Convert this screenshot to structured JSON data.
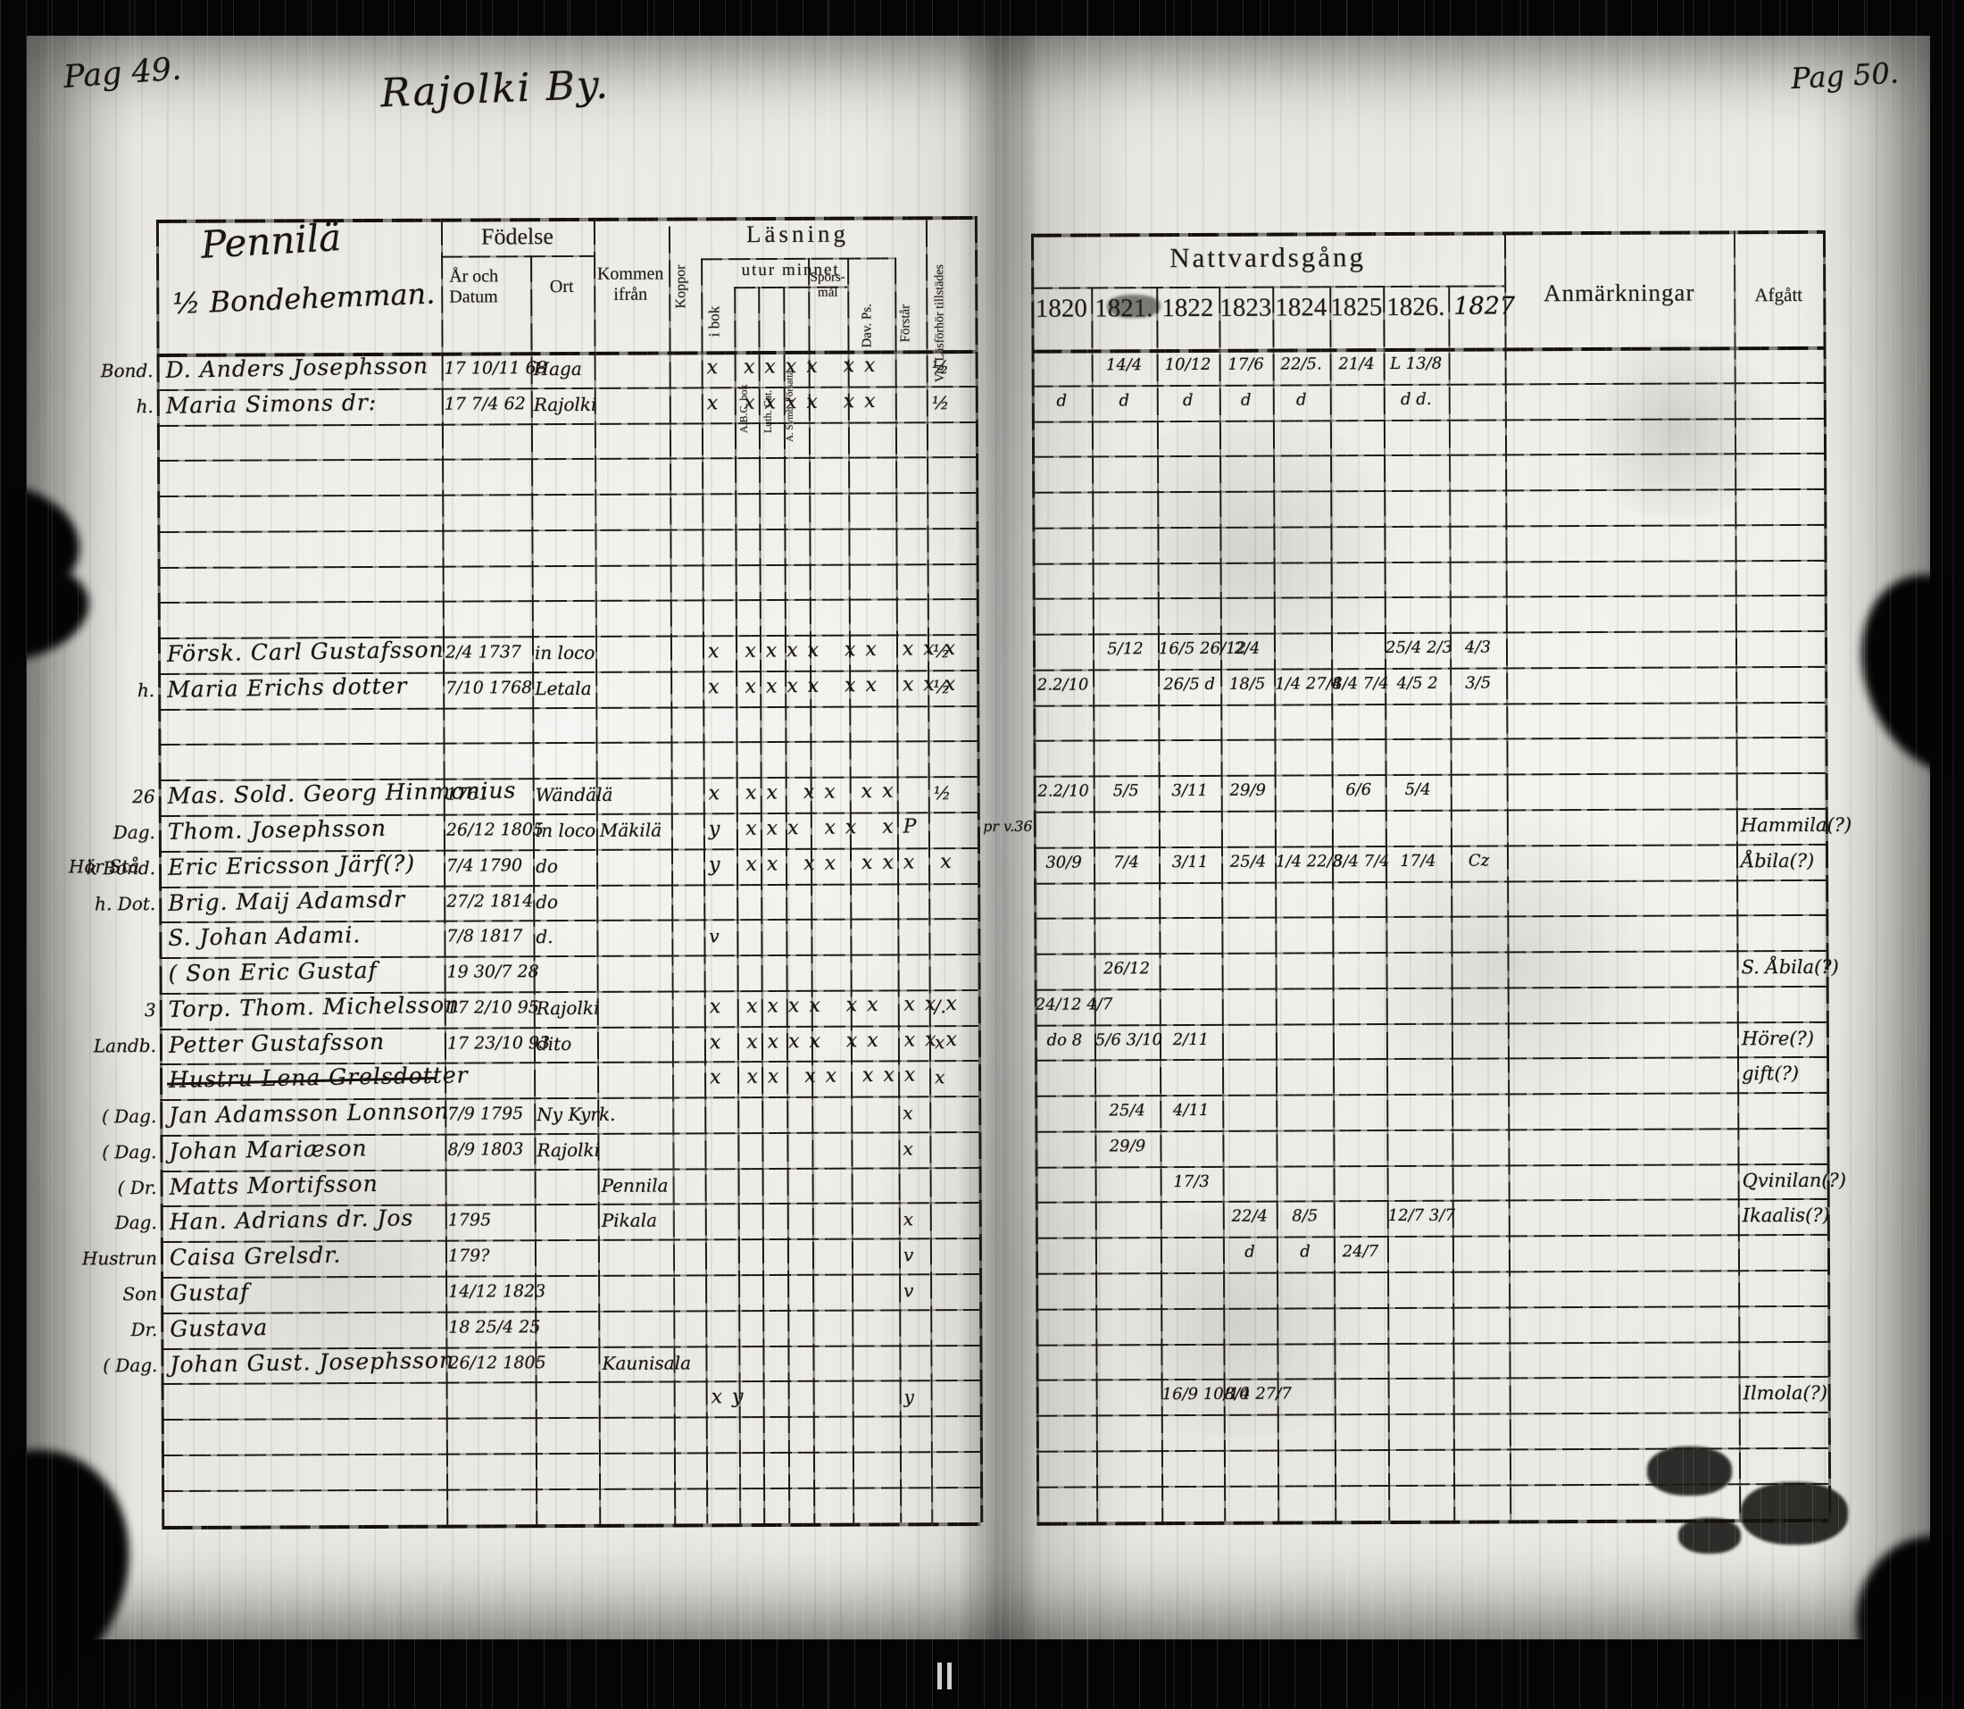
{
  "scan_labels": {
    "left_pagination": "Pag 49.",
    "section_title": "Rajolki By.",
    "right_pagination": "Pag 50."
  },
  "left_table": {
    "household_title": "Pennilä",
    "household_subtitle": "½ Bondehemman.",
    "fodelse": "Födelse",
    "ar_och_datum": "År och Datum",
    "ort": "Ort",
    "kommen_ifran": "Kommen ifrån",
    "koppor": "Koppor",
    "lasning": "Läsning",
    "i_bok": "i bok",
    "utur_minnet": "utur minnet",
    "abc_bok": "A.B.C. bok",
    "luth_cat": "Luth. Cat.",
    "a_symb": "A. Symb. Försatta",
    "sporsmal": "Spörs- mål",
    "dav_ps": "Dav. Ps.",
    "forstar": "Förstår",
    "vid_lasforhor": "Vid Läsförhör tillstädes"
  },
  "right_table": {
    "nattvardsgang": "Nattvardsgång",
    "years": [
      "1820",
      "1821.",
      "1822",
      "1823",
      "1824",
      "1825",
      "1826.",
      "1827"
    ],
    "anmarkningar": "Anmärkningar",
    "afgatt": "Afgått"
  },
  "rows": [
    {
      "m": "Bond.",
      "n": "D. Anders Josephsson",
      "b": "17 10/11 68",
      "o": "Haga",
      "rm": "x xxxx xx",
      "vid": "½",
      "nv": [
        "",
        "14/4",
        "10/12",
        "17/6",
        "22/5.",
        "21/4",
        "L 13/8",
        ""
      ]
    },
    {
      "m": "h.",
      "n": "Maria Simons dr:",
      "b": "17 7/4 62",
      "o": "Rajolki",
      "rm": "x xxxx xx",
      "vid": "½",
      "nv": [
        "d",
        "d",
        "d",
        "d",
        "d",
        "",
        "d d.",
        ""
      ]
    },
    {},
    {},
    {},
    {},
    {},
    {},
    {
      "n": "Försk. Carl Gustafsson",
      "b": "2/4 1737",
      "o": "in loco",
      "rm": "x xxxx xx xxx",
      "vid": "½",
      "nv": [
        "",
        "5/12",
        "16/5 26/12",
        "2/4",
        "",
        "",
        "25/4 2/3",
        "4/3"
      ]
    },
    {
      "m": "h.",
      "n": "Maria Erichs dotter",
      "b": "7/10 1768",
      "o": "Letala",
      "rm": "x xxxx xx xxx",
      "vid": "½",
      "nv": [
        "2.2/10",
        "",
        "26/5 d",
        "18/5",
        "1/4 27/4",
        "8/4 7/4",
        "4/5 2",
        "3/5"
      ]
    },
    {},
    {},
    {
      "m": "26",
      "n": "Mas. Sold. Georg Hinmonius",
      "b": "1761",
      "o": "Wändälä",
      "rm": "x xx xx xx",
      "vid": "½",
      "nv": [
        "2.2/10",
        "5/5",
        "3/11",
        "29/9",
        "",
        "6/6",
        "5/4",
        ""
      ]
    },
    {
      "m": "Dag.",
      "n": "Thom. Josephsson",
      "b": "26/12 1805",
      "o": "in loco",
      "k": "Mäkilä",
      "rm": "y xxx xx xP",
      "pre": "pr v.36",
      "af": "Hammila(?)"
    },
    {
      "m2": "Hör Stå",
      "m": "k Bond.",
      "n": "Eric Ericsson Järf(?)",
      "b": "7/4 1790",
      "o": "do",
      "rm": "y xx xx xxx x",
      "nv": [
        "30/9",
        "7/4",
        "3/11",
        "25/4",
        "1/4 22/3",
        "8/4 7/4",
        "17/4",
        "Cz"
      ],
      "af": "Åbila(?)"
    },
    {
      "m": "h. Dot.",
      "n": "Brig. Maij Adamsdr",
      "b": "27/2 1814",
      "o": "do"
    },
    {
      "n": "S. Johan Adami.",
      "b": "7/8 1817",
      "o": "d.",
      "ib": "v"
    },
    {
      "n": "( Son Eric Gustaf",
      "b": "19 30/7 28",
      "nv": [
        "",
        "26/12",
        "",
        "",
        "",
        "",
        "",
        ""
      ],
      "af": "S. Åbila(?)"
    },
    {
      "m": "3",
      "n": "Torp. Thom. Michelsson",
      "b": "17 2/10 95",
      "o": "Rajolki",
      "rm": "x xxxx xx xxx",
      "vid": "/.",
      "nv": [
        "24/12 4/7",
        "",
        "",
        "",
        "",
        "",
        "",
        ""
      ]
    },
    {
      "m": "Landb.",
      "n": "Petter Gustafsson",
      "b": "17 23/10 93",
      "o": "dito",
      "rm": "x xxxx xx xxx",
      "vid": "x",
      "nv": [
        "do 8",
        "5/6 3/10",
        "2/11",
        "",
        "",
        "",
        "",
        ""
      ],
      "af": "Höre(?)"
    },
    {
      "n": "Hustru Lena Grelsdotter",
      "struck": true,
      "rm": "x xx xx xxx",
      "vid": "x",
      "af": "gift(?)"
    },
    {
      "m": "( Dag.",
      "n": "Jan Adamsson Lonnson",
      "b": "7/9 1795",
      "o": "Ny Kyrk.",
      "f": "x",
      "nv": [
        "",
        "25/4",
        "4/11",
        "",
        "",
        "",
        "",
        ""
      ]
    },
    {
      "m": "( Dag.",
      "n": "Johan Mariæson",
      "b": "8/9 1803",
      "o": "Rajolki",
      "f": "x",
      "nv": [
        "",
        "29/9",
        "",
        "",
        "",
        "",
        "",
        ""
      ]
    },
    {
      "m": "( Dr.",
      "n": "Matts Mortifsson",
      "k": "Pennila",
      "nv": [
        "",
        "",
        "17/3",
        "",
        "",
        "",
        "",
        ""
      ],
      "af": "Qvinilan(?)"
    },
    {
      "m": "Dag.",
      "n": "Han. Adrians dr. Jos",
      "b": "1795",
      "k": "Pikala",
      "f": "x",
      "nv": [
        "",
        "",
        "",
        "22/4",
        "8/5",
        "",
        "12/7 3/7",
        ""
      ],
      "af": "Ikaalis(?)"
    },
    {
      "m": "Hustrun",
      "n": "Caisa Grelsdr.",
      "b": "179?",
      "f": "v",
      "nv": [
        "",
        "",
        "",
        "d",
        "d",
        "24/7",
        "",
        ""
      ]
    },
    {
      "m": "Son",
      "n": "Gustaf",
      "b": "14/12 1823",
      "f": "v"
    },
    {
      "m": "Dr.",
      "n": "Gustava",
      "b": "18 25/4 25"
    },
    {
      "m": "( Dag.",
      "n": "Johan Gust. Josephsson",
      "b": "26/12 1805",
      "k": "Kaunisala"
    },
    {
      "rm": "xy",
      "f": "y",
      "nv": [
        "",
        "",
        "16/9 10/10",
        "8/4 27/7",
        "",
        "",
        "",
        ""
      ],
      "af": "Ilmola(?)"
    },
    {},
    {},
    {}
  ]
}
